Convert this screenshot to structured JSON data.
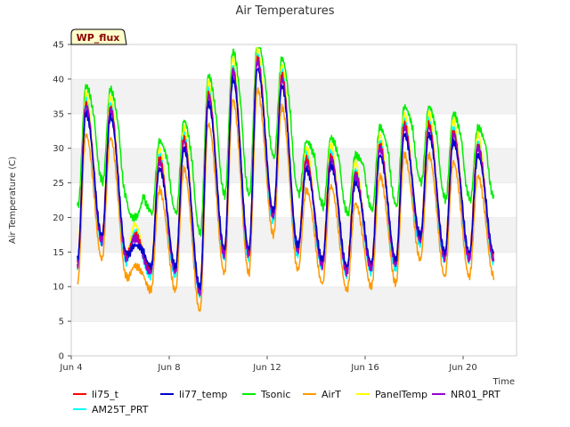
{
  "chart_data": {
    "type": "line",
    "title": "Air Temperatures",
    "ylabel": "Air Temperature (C)",
    "xlabel": "Time",
    "badge": "WP_flux",
    "ylim": [
      0,
      45
    ],
    "yticks": [
      0,
      5,
      10,
      15,
      20,
      25,
      30,
      35,
      40,
      45
    ],
    "xlim_days": [
      0,
      18
    ],
    "xticks": [
      {
        "day": 0,
        "label": "Jun 4"
      },
      {
        "day": 4,
        "label": "Jun 8"
      },
      {
        "day": 8,
        "label": "Jun 12"
      },
      {
        "day": 12,
        "label": "Jun 16"
      },
      {
        "day": 16,
        "label": "Jun 20"
      }
    ],
    "grid": "horizontal bands",
    "legend": "bottom",
    "daily_max": [
      36,
      35.5,
      17,
      28,
      31,
      37.5,
      41,
      42.5,
      40,
      28,
      28.5,
      26,
      30,
      33,
      33,
      32,
      30,
      27
    ],
    "daily_min": [
      13,
      16.5,
      14,
      12,
      12,
      9,
      14.5,
      14.5,
      20,
      15,
      13,
      12,
      12.5,
      13,
      16.5,
      14,
      14,
      14
    ],
    "series": [
      {
        "name": "li75_t",
        "color": "#ff0000",
        "offset_max": 0.5,
        "offset_min": 0.5
      },
      {
        "name": "li77_temp",
        "color": "#0000cc",
        "offset_max": -1,
        "offset_min": 1
      },
      {
        "name": "Tsonic",
        "color": "#00ee00",
        "offset_max": 3,
        "offset_min": 9
      },
      {
        "name": "AirT",
        "color": "#ff9900",
        "offset_max": -4,
        "offset_min": -2.5
      },
      {
        "name": "PanelTemp",
        "color": "#ffff00",
        "offset_max": 2,
        "offset_min": 0
      },
      {
        "name": "NR01_PRT",
        "color": "#9900cc",
        "offset_max": 0,
        "offset_min": 0
      },
      {
        "name": "AM25T_PRT",
        "color": "#00ffff",
        "offset_max": 1,
        "offset_min": -0.5
      }
    ]
  }
}
